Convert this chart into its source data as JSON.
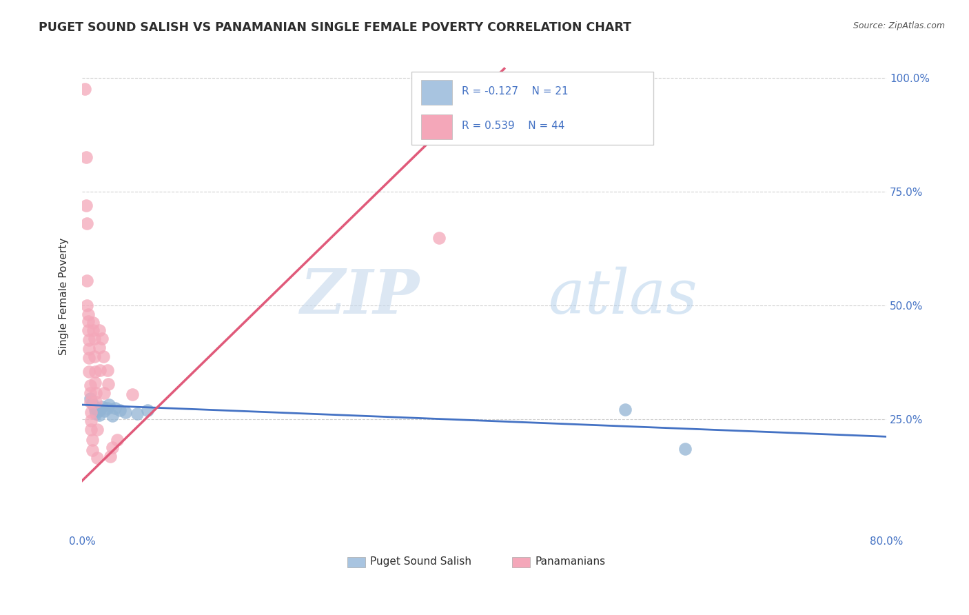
{
  "title": "PUGET SOUND SALISH VS PANAMANIAN SINGLE FEMALE POVERTY CORRELATION CHART",
  "source": "Source: ZipAtlas.com",
  "ylabel": "Single Female Poverty",
  "xlim": [
    0.0,
    0.8
  ],
  "ylim": [
    0.0,
    1.04
  ],
  "yticks": [
    0.25,
    0.5,
    0.75,
    1.0
  ],
  "ytick_labels": [
    "25.0%",
    "50.0%",
    "75.0%",
    "100.0%"
  ],
  "xtick_vals": [
    0.0,
    0.8
  ],
  "xtick_labels": [
    "0.0%",
    "80.0%"
  ],
  "background_color": "#ffffff",
  "watermark_zip": "ZIP",
  "watermark_atlas": "atlas",
  "legend_r_n": [
    {
      "R": "-0.127",
      "N": "21"
    },
    {
      "R": "0.539",
      "N": "44"
    }
  ],
  "blue_scatter": [
    [
      0.008,
      0.295
    ],
    [
      0.01,
      0.285
    ],
    [
      0.012,
      0.278
    ],
    [
      0.013,
      0.27
    ],
    [
      0.014,
      0.262
    ],
    [
      0.015,
      0.275
    ],
    [
      0.016,
      0.268
    ],
    [
      0.017,
      0.26
    ],
    [
      0.018,
      0.272
    ],
    [
      0.02,
      0.278
    ],
    [
      0.022,
      0.268
    ],
    [
      0.025,
      0.275
    ],
    [
      0.027,
      0.282
    ],
    [
      0.03,
      0.258
    ],
    [
      0.033,
      0.275
    ],
    [
      0.038,
      0.27
    ],
    [
      0.043,
      0.265
    ],
    [
      0.055,
      0.262
    ],
    [
      0.065,
      0.27
    ],
    [
      0.54,
      0.272
    ],
    [
      0.6,
      0.185
    ]
  ],
  "pink_scatter": [
    [
      0.003,
      0.975
    ],
    [
      0.004,
      0.825
    ],
    [
      0.004,
      0.72
    ],
    [
      0.005,
      0.68
    ],
    [
      0.005,
      0.555
    ],
    [
      0.005,
      0.5
    ],
    [
      0.006,
      0.48
    ],
    [
      0.006,
      0.465
    ],
    [
      0.006,
      0.445
    ],
    [
      0.007,
      0.425
    ],
    [
      0.007,
      0.405
    ],
    [
      0.007,
      0.385
    ],
    [
      0.007,
      0.355
    ],
    [
      0.008,
      0.325
    ],
    [
      0.008,
      0.308
    ],
    [
      0.008,
      0.288
    ],
    [
      0.009,
      0.265
    ],
    [
      0.009,
      0.248
    ],
    [
      0.009,
      0.228
    ],
    [
      0.01,
      0.205
    ],
    [
      0.01,
      0.182
    ],
    [
      0.011,
      0.462
    ],
    [
      0.011,
      0.445
    ],
    [
      0.012,
      0.428
    ],
    [
      0.012,
      0.388
    ],
    [
      0.013,
      0.355
    ],
    [
      0.013,
      0.33
    ],
    [
      0.014,
      0.308
    ],
    [
      0.014,
      0.288
    ],
    [
      0.015,
      0.228
    ],
    [
      0.015,
      0.165
    ],
    [
      0.017,
      0.445
    ],
    [
      0.017,
      0.408
    ],
    [
      0.018,
      0.358
    ],
    [
      0.02,
      0.428
    ],
    [
      0.021,
      0.388
    ],
    [
      0.022,
      0.308
    ],
    [
      0.025,
      0.358
    ],
    [
      0.026,
      0.328
    ],
    [
      0.03,
      0.188
    ],
    [
      0.035,
      0.205
    ],
    [
      0.05,
      0.305
    ],
    [
      0.355,
      0.648
    ],
    [
      0.028,
      0.168
    ]
  ],
  "blue_line_x": [
    0.0,
    0.8
  ],
  "blue_line_y": [
    0.282,
    0.212
  ],
  "pink_line_x": [
    0.0,
    0.42
  ],
  "pink_line_y": [
    0.115,
    1.02
  ],
  "title_color": "#2d2d2d",
  "title_fontsize": 12.5,
  "axis_label_color": "#2d2d2d",
  "tick_label_color": "#4472c4",
  "blue_dot_color": "#92b4d4",
  "pink_dot_color": "#f4a7b9",
  "blue_line_color": "#4472c4",
  "pink_line_color": "#e05a7a",
  "grid_color": "#d0d0d0",
  "source_color": "#555555",
  "legend_blue_color": "#a8c4e0",
  "legend_pink_color": "#f4a7b9"
}
